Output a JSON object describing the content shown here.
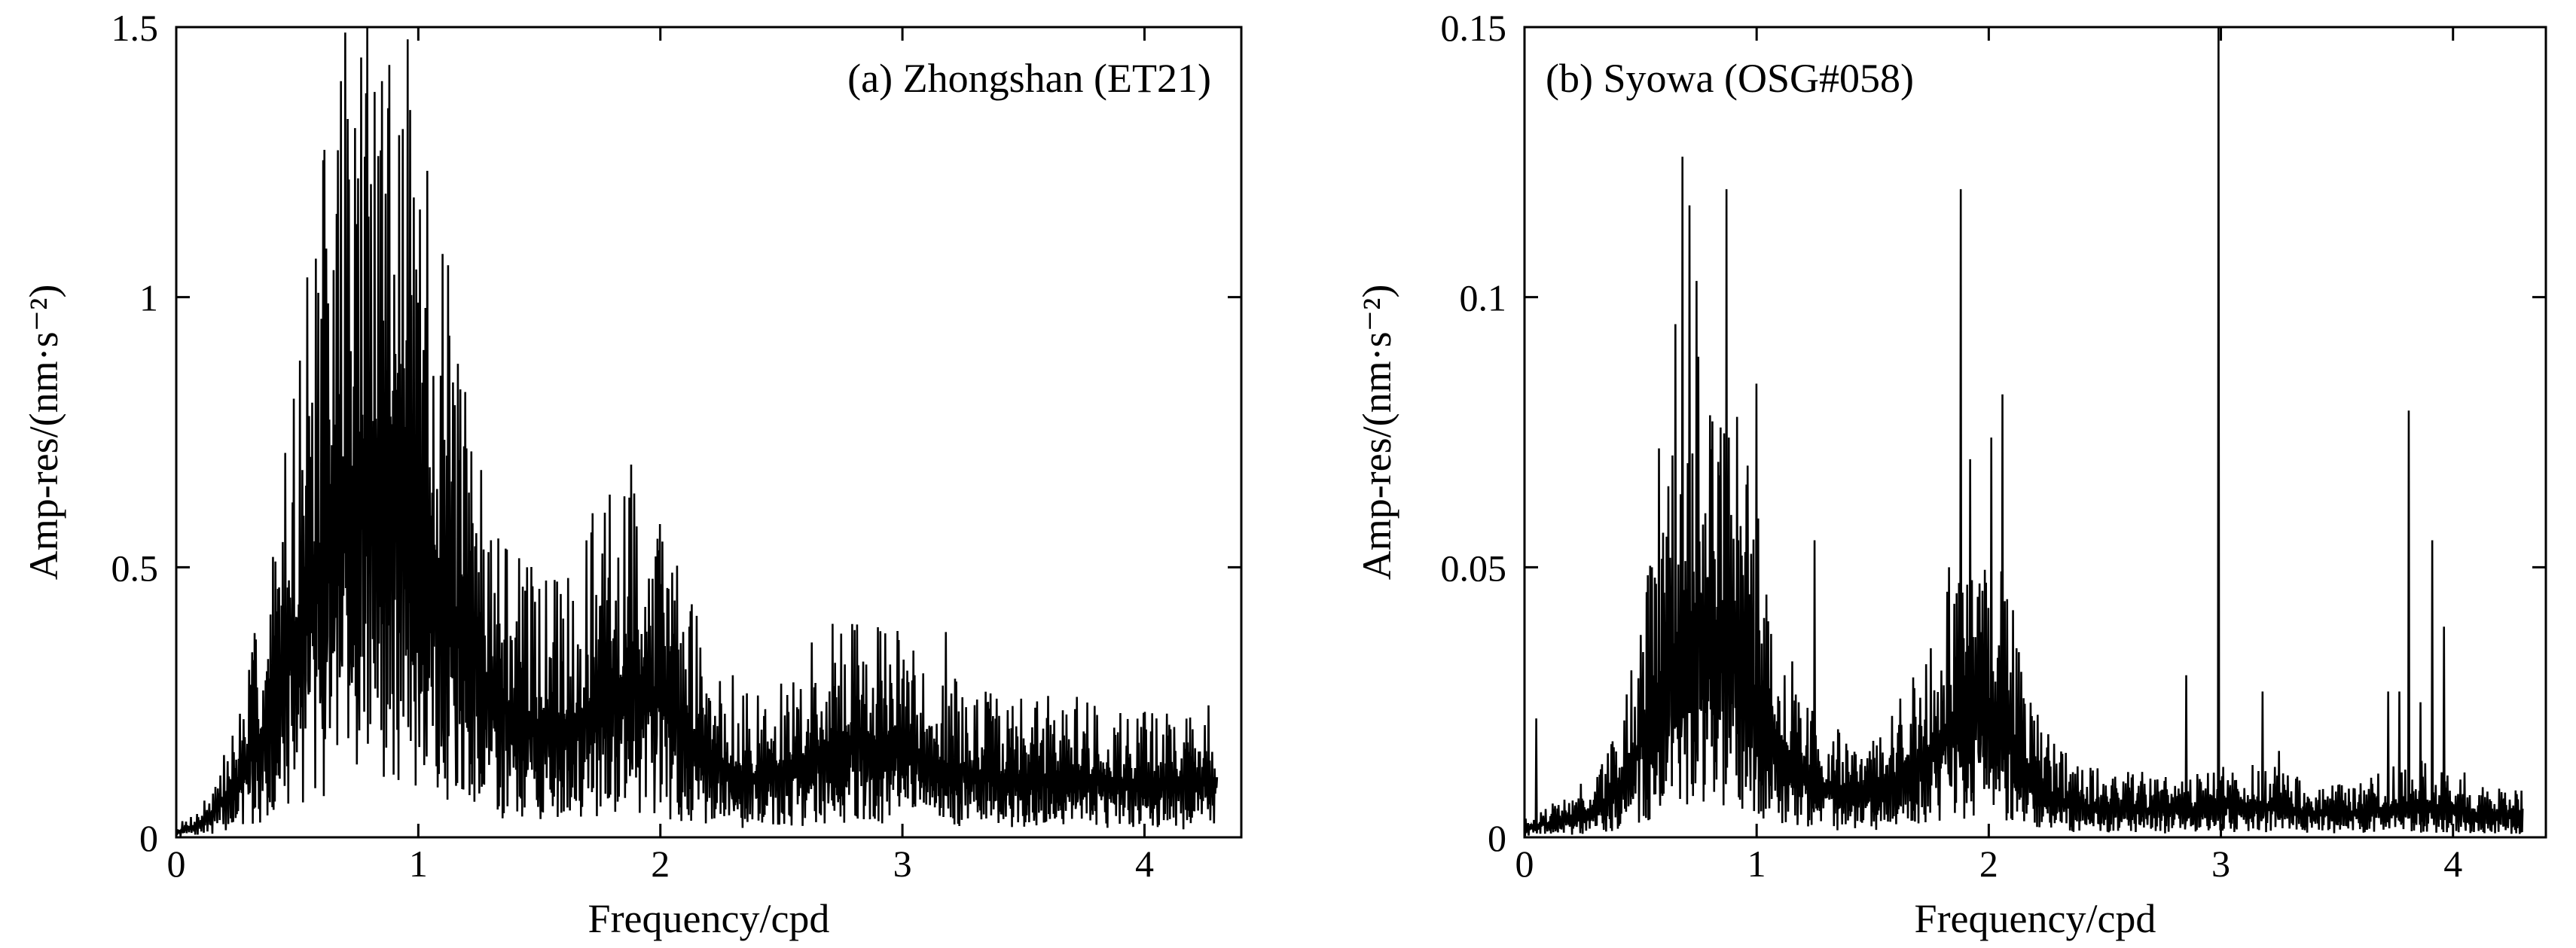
{
  "chart_data": [
    {
      "type": "line",
      "panel_label": "(a) Zhongshan (ET21)",
      "title": "",
      "xlabel": "Frequency/cpd",
      "ylabel": "Amp-res/(nm·s⁻²)",
      "xlim": [
        0,
        4.4
      ],
      "ylim": [
        0,
        1.5
      ],
      "xticks": [
        0,
        1,
        2,
        3,
        4
      ],
      "xtick_labels": [
        "0",
        "1",
        "2",
        "3",
        "4"
      ],
      "yticks": [
        0,
        0.5,
        1,
        1.5
      ],
      "ytick_labels": [
        "0",
        "0.5",
        "1",
        "1.5"
      ],
      "series": [
        {
          "name": "Zhongshan (ET21) amplitude residual",
          "x": [
            0.0,
            0.1,
            0.2,
            0.3,
            0.4,
            0.5,
            0.6,
            0.7,
            0.8,
            0.9,
            1.0,
            1.1,
            1.2,
            1.3,
            1.4,
            1.5,
            1.6,
            1.7,
            1.8,
            1.9,
            2.0,
            2.1,
            2.2,
            2.3,
            2.4,
            2.5,
            2.6,
            2.7,
            2.8,
            2.9,
            3.0,
            3.1,
            3.2,
            3.3,
            3.4,
            3.5,
            3.6,
            3.7,
            3.8,
            3.9,
            4.0,
            4.1,
            4.2,
            4.3
          ],
          "envelope": [
            0.01,
            0.03,
            0.08,
            0.16,
            0.28,
            0.45,
            0.62,
            0.75,
            0.8,
            0.78,
            0.68,
            0.55,
            0.42,
            0.32,
            0.26,
            0.24,
            0.24,
            0.27,
            0.32,
            0.34,
            0.3,
            0.24,
            0.18,
            0.14,
            0.13,
            0.14,
            0.17,
            0.2,
            0.21,
            0.2,
            0.19,
            0.17,
            0.15,
            0.14,
            0.13,
            0.13,
            0.13,
            0.13,
            0.13,
            0.12,
            0.12,
            0.12,
            0.12,
            0.12
          ],
          "peaks": [
            {
              "x": 0.3,
              "y": 0.31
            },
            {
              "x": 0.38,
              "y": 0.33
            },
            {
              "x": 0.42,
              "y": 0.46
            },
            {
              "x": 0.48,
              "y": 0.62
            },
            {
              "x": 0.52,
              "y": 0.68
            },
            {
              "x": 0.55,
              "y": 0.78
            },
            {
              "x": 0.6,
              "y": 0.96
            },
            {
              "x": 0.62,
              "y": 1.09
            },
            {
              "x": 0.65,
              "y": 1.05
            },
            {
              "x": 0.68,
              "y": 1.4
            },
            {
              "x": 0.72,
              "y": 0.9
            },
            {
              "x": 0.75,
              "y": 1.22
            },
            {
              "x": 0.78,
              "y": 1.26
            },
            {
              "x": 0.82,
              "y": 1.38
            },
            {
              "x": 0.85,
              "y": 1.4
            },
            {
              "x": 0.88,
              "y": 1.43
            },
            {
              "x": 0.92,
              "y": 1.3
            },
            {
              "x": 0.95,
              "y": 0.92
            },
            {
              "x": 1.0,
              "y": 0.99
            },
            {
              "x": 1.03,
              "y": 0.98
            },
            {
              "x": 1.1,
              "y": 1.08
            },
            {
              "x": 1.15,
              "y": 0.8
            },
            {
              "x": 1.2,
              "y": 0.72
            },
            {
              "x": 1.26,
              "y": 0.68
            },
            {
              "x": 1.3,
              "y": 0.55
            },
            {
              "x": 1.45,
              "y": 0.5
            },
            {
              "x": 1.5,
              "y": 0.46
            },
            {
              "x": 1.62,
              "y": 0.48
            },
            {
              "x": 1.72,
              "y": 0.6
            },
            {
              "x": 1.88,
              "y": 0.69
            },
            {
              "x": 1.98,
              "y": 0.52
            },
            {
              "x": 2.05,
              "y": 0.49
            },
            {
              "x": 2.15,
              "y": 0.41
            },
            {
              "x": 2.3,
              "y": 0.3
            },
            {
              "x": 2.7,
              "y": 0.27
            },
            {
              "x": 2.85,
              "y": 0.32
            },
            {
              "x": 2.95,
              "y": 0.32
            },
            {
              "x": 3.05,
              "y": 0.3
            },
            {
              "x": 3.18,
              "y": 0.38
            },
            {
              "x": 3.35,
              "y": 0.25
            },
            {
              "x": 3.55,
              "y": 0.24
            },
            {
              "x": 3.72,
              "y": 0.26
            },
            {
              "x": 3.9,
              "y": 0.23
            },
            {
              "x": 4.05,
              "y": 0.22
            },
            {
              "x": 4.2,
              "y": 0.2
            }
          ],
          "x_end": 4.3
        }
      ]
    },
    {
      "type": "line",
      "panel_label": "(b) Syowa (OSG#058)",
      "title": "",
      "xlabel": "Frequency/cpd",
      "ylabel": "Amp-res/(nm·s⁻²)",
      "xlim": [
        0,
        4.4
      ],
      "ylim": [
        0,
        0.15
      ],
      "xticks": [
        0,
        1,
        2,
        3,
        4
      ],
      "xtick_labels": [
        "0",
        "1",
        "2",
        "3",
        "4"
      ],
      "yticks": [
        0,
        0.05,
        0.1,
        0.15
      ],
      "ytick_labels": [
        "0",
        "0.05",
        "0.1",
        "0.15"
      ],
      "series": [
        {
          "name": "Syowa (OSG#058) amplitude residual",
          "x": [
            0.0,
            0.1,
            0.2,
            0.3,
            0.4,
            0.5,
            0.6,
            0.7,
            0.8,
            0.9,
            1.0,
            1.1,
            1.2,
            1.3,
            1.4,
            1.5,
            1.6,
            1.7,
            1.8,
            1.9,
            2.0,
            2.1,
            2.2,
            2.3,
            2.4,
            2.5,
            2.6,
            2.7,
            2.8,
            2.9,
            3.0,
            3.1,
            3.2,
            3.3,
            3.4,
            3.5,
            3.6,
            3.7,
            3.8,
            3.9,
            4.0,
            4.1,
            4.2,
            4.3
          ],
          "envelope": [
            0.002,
            0.003,
            0.004,
            0.006,
            0.01,
            0.02,
            0.035,
            0.046,
            0.046,
            0.04,
            0.03,
            0.02,
            0.014,
            0.011,
            0.01,
            0.01,
            0.012,
            0.016,
            0.022,
            0.027,
            0.028,
            0.022,
            0.012,
            0.008,
            0.007,
            0.006,
            0.006,
            0.006,
            0.006,
            0.006,
            0.007,
            0.007,
            0.007,
            0.006,
            0.005,
            0.005,
            0.005,
            0.006,
            0.007,
            0.007,
            0.006,
            0.005,
            0.005,
            0.005
          ],
          "peaks": [
            {
              "x": 0.05,
              "y": 0.022
            },
            {
              "x": 0.55,
              "y": 0.05
            },
            {
              "x": 0.58,
              "y": 0.072
            },
            {
              "x": 0.62,
              "y": 0.065
            },
            {
              "x": 0.65,
              "y": 0.095
            },
            {
              "x": 0.68,
              "y": 0.126
            },
            {
              "x": 0.71,
              "y": 0.117
            },
            {
              "x": 0.74,
              "y": 0.103
            },
            {
              "x": 0.78,
              "y": 0.06
            },
            {
              "x": 0.81,
              "y": 0.077
            },
            {
              "x": 0.84,
              "y": 0.067
            },
            {
              "x": 0.87,
              "y": 0.12
            },
            {
              "x": 0.92,
              "y": 0.055
            },
            {
              "x": 0.97,
              "y": 0.045
            },
            {
              "x": 1.0,
              "y": 0.084
            },
            {
              "x": 1.05,
              "y": 0.04
            },
            {
              "x": 1.12,
              "y": 0.03
            },
            {
              "x": 1.18,
              "y": 0.025
            },
            {
              "x": 1.25,
              "y": 0.055
            },
            {
              "x": 1.35,
              "y": 0.02
            },
            {
              "x": 1.75,
              "y": 0.035
            },
            {
              "x": 1.83,
              "y": 0.05
            },
            {
              "x": 1.88,
              "y": 0.12
            },
            {
              "x": 1.92,
              "y": 0.07
            },
            {
              "x": 1.96,
              "y": 0.047
            },
            {
              "x": 2.01,
              "y": 0.074
            },
            {
              "x": 2.06,
              "y": 0.082
            },
            {
              "x": 2.12,
              "y": 0.035
            },
            {
              "x": 2.2,
              "y": 0.015
            },
            {
              "x": 2.85,
              "y": 0.03
            },
            {
              "x": 2.99,
              "y": 0.15
            },
            {
              "x": 3.18,
              "y": 0.027
            },
            {
              "x": 3.25,
              "y": 0.016
            },
            {
              "x": 3.72,
              "y": 0.027
            },
            {
              "x": 3.77,
              "y": 0.027
            },
            {
              "x": 3.81,
              "y": 0.079
            },
            {
              "x": 3.86,
              "y": 0.025
            },
            {
              "x": 3.91,
              "y": 0.055
            },
            {
              "x": 3.96,
              "y": 0.039
            },
            {
              "x": 4.05,
              "y": 0.012
            },
            {
              "x": 4.2,
              "y": 0.009
            }
          ],
          "x_end": 4.3
        }
      ]
    }
  ]
}
